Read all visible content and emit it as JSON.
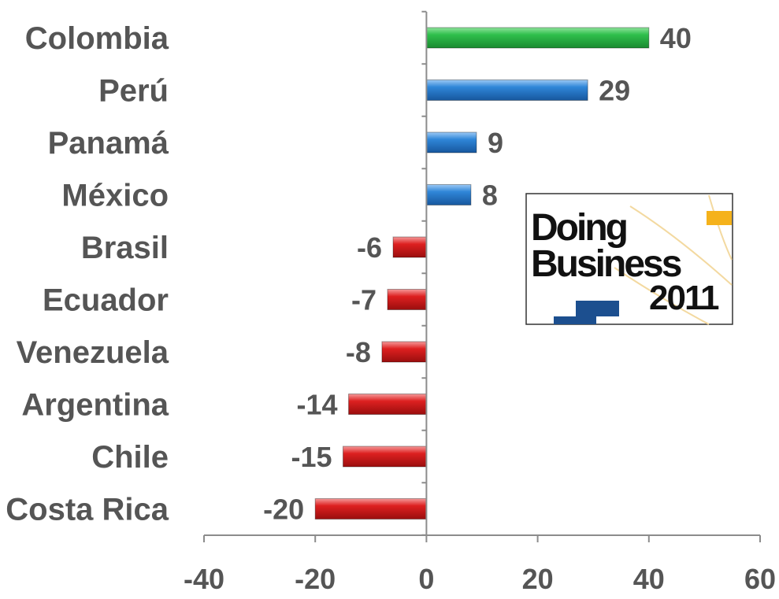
{
  "chart_data": {
    "type": "bar",
    "orientation": "horizontal",
    "categories": [
      "Colombia",
      "Perú",
      "Panamá",
      "México",
      "Brasil",
      "Ecuador",
      "Venezuela",
      "Argentina",
      "Chile",
      "Costa Rica"
    ],
    "values": [
      40,
      29,
      9,
      8,
      -6,
      -7,
      -8,
      -14,
      -15,
      -20
    ],
    "bar_colors": [
      "#2db34a",
      "#2a7fd4",
      "#2a7fd4",
      "#2a7fd4",
      "#d91f1f",
      "#d91f1f",
      "#d91f1f",
      "#d91f1f",
      "#d91f1f",
      "#d91f1f"
    ],
    "xlim": [
      -40,
      60
    ],
    "xticks": [
      -40,
      -20,
      0,
      20,
      40,
      60
    ],
    "title": "",
    "xlabel": "",
    "ylabel": "",
    "grid": false,
    "data_labels": true
  },
  "logo": {
    "line1": "Doing",
    "line2": "Business",
    "line3": "2011",
    "accent_color": "#f5b21b",
    "brand_color": "#1c4f8f"
  }
}
